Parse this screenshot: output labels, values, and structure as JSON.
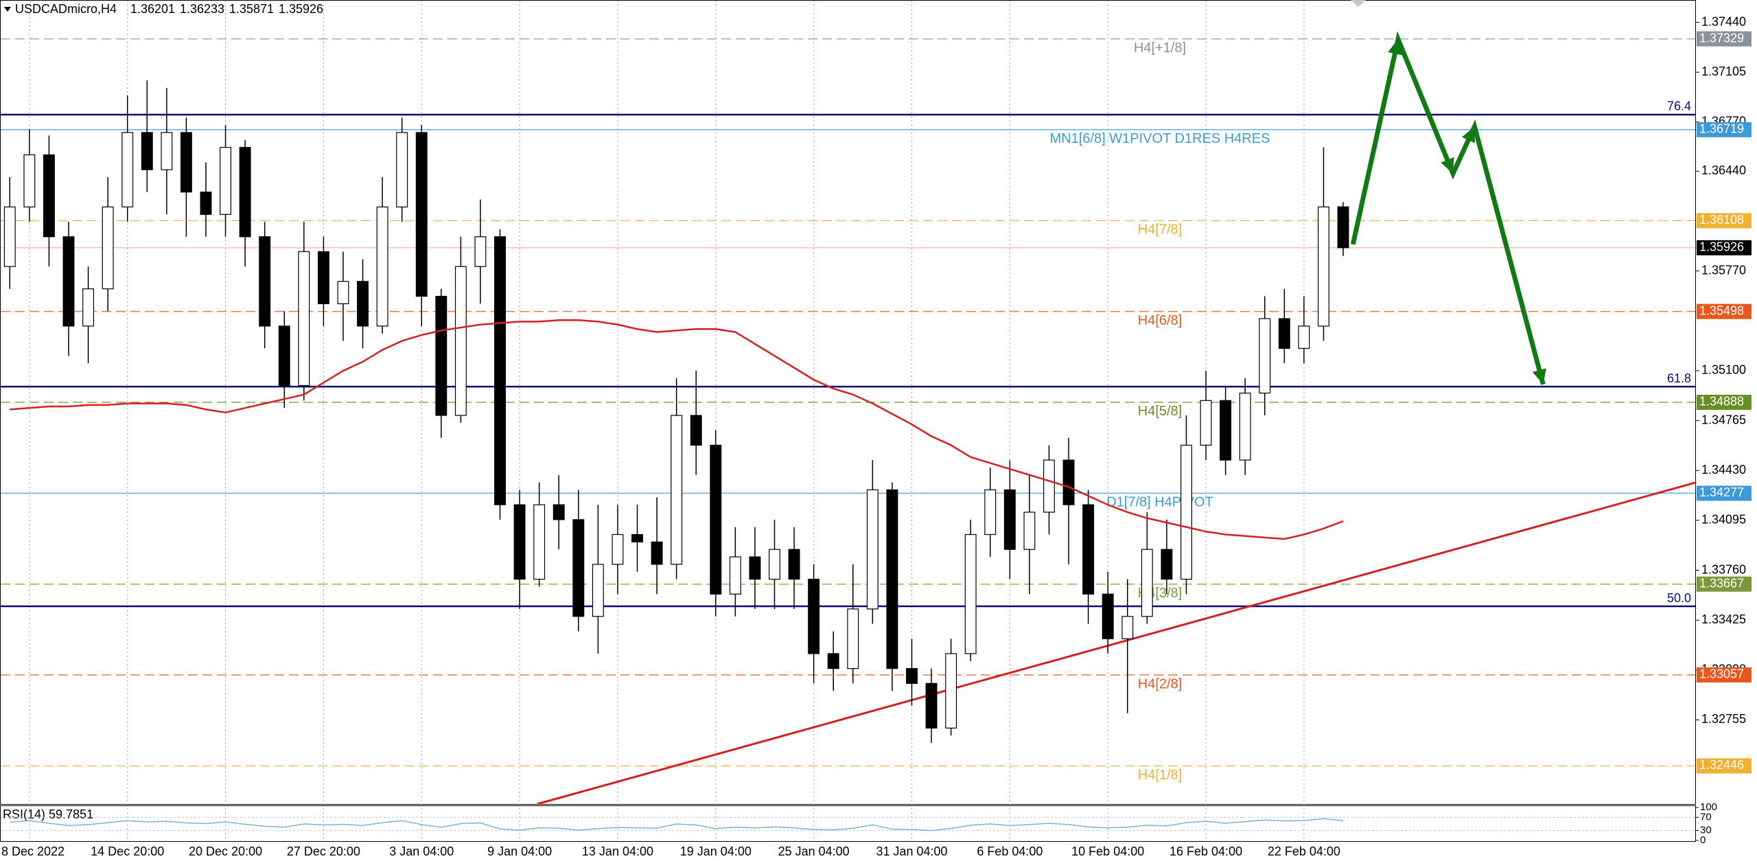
{
  "chart_data": {
    "type": "candlestick",
    "header": {
      "symbol": "USDCADmicro,H4",
      "ohlc": [
        1.36201,
        1.36233,
        1.35871,
        1.35926
      ]
    },
    "categories": [
      null,
      "8 Dec 2022",
      null,
      null,
      null,
      null,
      "14 Dec 20:00",
      null,
      null,
      null,
      null,
      "20 Dec 20:00",
      null,
      null,
      null,
      null,
      "27 Dec 20:00",
      null,
      null,
      null,
      null,
      "3 Jan 04:00",
      null,
      null,
      null,
      null,
      "9 Jan 04:00",
      null,
      null,
      null,
      null,
      "13 Jan 04:00",
      null,
      null,
      null,
      null,
      "19 Jan 04:00",
      null,
      null,
      null,
      null,
      "25 Jan 04:00",
      null,
      null,
      null,
      null,
      "31 Jan 04:00",
      null,
      null,
      null,
      null,
      "6 Feb 04:00",
      null,
      null,
      null,
      null,
      "10 Feb 04:00",
      null,
      null,
      null,
      null,
      "16 Feb 04:00",
      null,
      null,
      null,
      null,
      "22 Feb 04:00",
      null,
      null
    ],
    "candles": {
      "open": [
        1.358,
        1.362,
        1.3655,
        1.36,
        1.354,
        1.3565,
        1.362,
        1.367,
        1.3645,
        1.367,
        1.363,
        1.3615,
        1.366,
        1.36,
        1.354,
        1.35,
        1.359,
        1.3555,
        1.357,
        1.354,
        1.362,
        1.367,
        1.356,
        1.348,
        1.358,
        1.36,
        1.342,
        1.337,
        1.342,
        1.341,
        1.3345,
        1.338,
        1.34,
        1.3395,
        1.338,
        1.348,
        1.346,
        1.336,
        1.3385,
        1.337,
        1.339,
        1.337,
        1.332,
        1.331,
        1.335,
        1.343,
        1.331,
        1.33,
        1.327,
        1.332,
        1.34,
        1.343,
        1.339,
        1.3415,
        1.345,
        1.342,
        1.336,
        1.333,
        1.3345,
        1.339,
        1.337,
        1.346,
        1.349,
        1.345,
        1.3495,
        1.3545,
        1.3525,
        1.354,
        1.36201
      ],
      "high": [
        1.364,
        1.3672,
        1.3668,
        1.361,
        1.358,
        1.364,
        1.3695,
        1.3705,
        1.37,
        1.368,
        1.365,
        1.3675,
        1.3665,
        1.361,
        1.355,
        1.361,
        1.36,
        1.359,
        1.3585,
        1.364,
        1.368,
        1.3675,
        1.3565,
        1.36,
        1.3625,
        1.3605,
        1.343,
        1.3435,
        1.344,
        1.343,
        1.342,
        1.342,
        1.342,
        1.3425,
        1.3505,
        1.351,
        1.347,
        1.3405,
        1.3405,
        1.341,
        1.3405,
        1.338,
        1.3335,
        1.338,
        1.345,
        1.3435,
        1.333,
        1.331,
        1.333,
        1.341,
        1.3445,
        1.345,
        1.344,
        1.346,
        1.3465,
        1.343,
        1.3375,
        1.337,
        1.3415,
        1.341,
        1.348,
        1.351,
        1.35,
        1.3505,
        1.356,
        1.3565,
        1.356,
        1.366,
        1.36233
      ],
      "low": [
        1.3565,
        1.361,
        1.358,
        1.352,
        1.3515,
        1.355,
        1.361,
        1.363,
        1.3615,
        1.36,
        1.36,
        1.36,
        1.358,
        1.3525,
        1.3485,
        1.349,
        1.354,
        1.353,
        1.3525,
        1.3535,
        1.361,
        1.354,
        1.3465,
        1.3475,
        1.3555,
        1.341,
        1.335,
        1.3365,
        1.339,
        1.3335,
        1.332,
        1.336,
        1.3375,
        1.336,
        1.337,
        1.344,
        1.3345,
        1.3345,
        1.335,
        1.335,
        1.335,
        1.33,
        1.3295,
        1.33,
        1.334,
        1.3295,
        1.3285,
        1.326,
        1.3265,
        1.3315,
        1.3385,
        1.337,
        1.336,
        1.34,
        1.338,
        1.334,
        1.332,
        1.328,
        1.334,
        1.336,
        1.336,
        1.345,
        1.344,
        1.344,
        1.348,
        1.3515,
        1.3515,
        1.353,
        1.35871
      ],
      "close": [
        1.362,
        1.3655,
        1.36,
        1.354,
        1.3565,
        1.362,
        1.367,
        1.3645,
        1.367,
        1.363,
        1.3615,
        1.366,
        1.36,
        1.354,
        1.35,
        1.359,
        1.3555,
        1.357,
        1.354,
        1.362,
        1.367,
        1.356,
        1.348,
        1.358,
        1.36,
        1.342,
        1.337,
        1.342,
        1.341,
        1.3345,
        1.338,
        1.34,
        1.3395,
        1.338,
        1.348,
        1.346,
        1.336,
        1.3385,
        1.337,
        1.339,
        1.337,
        1.332,
        1.331,
        1.335,
        1.343,
        1.331,
        1.33,
        1.327,
        1.332,
        1.34,
        1.343,
        1.339,
        1.3415,
        1.345,
        1.342,
        1.336,
        1.333,
        1.3345,
        1.339,
        1.337,
        1.346,
        1.349,
        1.345,
        1.3495,
        1.3545,
        1.3525,
        1.354,
        1.362,
        1.35926
      ]
    },
    "up_color": "#ffffff",
    "down_color": "#000000",
    "ma": {
      "color": "#d42020",
      "values": [
        1.3484,
        1.3485,
        1.3486,
        1.3486,
        1.3487,
        1.3487,
        1.3488,
        1.3488,
        1.3488,
        1.3487,
        1.3484,
        1.3482,
        1.3485,
        1.3488,
        1.3491,
        1.3494,
        1.3502,
        1.351,
        1.3516,
        1.3524,
        1.353,
        1.3534,
        1.3537,
        1.3539,
        1.3541,
        1.3542,
        1.3543,
        1.3543,
        1.3544,
        1.3544,
        1.3543,
        1.3541,
        1.3538,
        1.3536,
        1.3537,
        1.3538,
        1.3538,
        1.3536,
        1.3528,
        1.352,
        1.3512,
        1.3504,
        1.3498,
        1.3494,
        1.3488,
        1.3481,
        1.3474,
        1.3466,
        1.346,
        1.3452,
        1.3448,
        1.3444,
        1.344,
        1.3436,
        1.3432,
        1.3426,
        1.342,
        1.3415,
        1.3411,
        1.3408,
        1.3405,
        1.3402,
        1.34,
        1.3399,
        1.3398,
        1.3397,
        1.34,
        1.3404,
        1.3409
      ]
    },
    "trendline": {
      "color": "#d42020",
      "x": [
        26.9,
        86
      ],
      "y": [
        1.3219,
        1.3435
      ]
    },
    "forecast": {
      "color": "#127a12",
      "x": [
        68.5,
        70.8,
        73.6,
        74.7,
        78.2
      ],
      "y": [
        1.35949,
        1.37327,
        1.36424,
        1.3674,
        1.35008
      ]
    },
    "ylim": [
      1.3219,
      1.3759
    ],
    "yticks": [
      {
        "value": 1.3744,
        "label": "1.37440"
      },
      1.37105,
      {
        "value": 1.3677,
        "label": "1.36770"
      },
      {
        "value": 1.3644,
        "label": "1.36440"
      },
      {
        "value": 1.3577,
        "label": "1.35770"
      },
      {
        "value": 1.351,
        "label": "1.35100"
      },
      1.34765,
      {
        "value": 1.3443,
        "label": "1.34430"
      },
      1.34095,
      {
        "value": 1.3376,
        "label": "1.33760"
      },
      1.33425,
      {
        "value": 1.3309,
        "label": "1.33090"
      },
      1.32755
    ],
    "levels": [
      {
        "price": 1.37329,
        "text": "H4[+1/8]",
        "color": "#8a939c",
        "style": "dashed"
      },
      {
        "price": 1.36719,
        "text": "MN1[6/8] W1PIVOT D1RES H4RES",
        "color": "#3d9ad9",
        "style": "solid"
      },
      {
        "price": 1.36108,
        "text": "H4[7/8]",
        "color": "#f0b030",
        "style": "dashed"
      },
      {
        "price": 1.35498,
        "text": "H4[6/8]",
        "color": "#e8571e",
        "style": "dashed"
      },
      {
        "price": 1.34888,
        "text": "H4[5/8]",
        "color": "#6b8e23",
        "style": "dashed"
      },
      {
        "price": 1.34277,
        "text": "D1[7/8] H4PIVOT",
        "color": "#3d9ad9",
        "style": "solid"
      },
      {
        "price": 1.33667,
        "text": "H4[3/8]",
        "color": "#7a9a3a",
        "style": "dashed"
      },
      {
        "price": 1.33057,
        "text": "H4[2/8]",
        "color": "#e8571e",
        "style": "dashed"
      },
      {
        "price": 1.32446,
        "text": "H4[1/8]",
        "color": "#f0b030",
        "style": "dashed"
      }
    ],
    "current_price": {
      "price": 1.35926,
      "color": "#000000"
    },
    "fib": {
      "color": "#0a0a78",
      "levels": [
        {
          "name": 76.4,
          "price": 1.3682
        },
        {
          "name": 61.8,
          "price": 1.34993
        },
        {
          "name": "50.0",
          "price": 1.33518
        }
      ]
    },
    "rsi": {
      "label": "RSI(14) 59.7851",
      "color": "#7fb0d8",
      "ylim": [
        0,
        100
      ],
      "yticks": [
        100,
        70,
        30,
        0
      ],
      "values": [
        55,
        60,
        52,
        45,
        48,
        54,
        60,
        56,
        58,
        53,
        51,
        56,
        49,
        43,
        40,
        50,
        47,
        49,
        45,
        54,
        60,
        48,
        40,
        51,
        53,
        35,
        31,
        38,
        37,
        31,
        36,
        39,
        38,
        37,
        50,
        47,
        36,
        40,
        38,
        41,
        38,
        33,
        32,
        37,
        47,
        34,
        33,
        30,
        36,
        46,
        50,
        45,
        48,
        52,
        48,
        41,
        38,
        40,
        46,
        44,
        54,
        58,
        52,
        57,
        62,
        59,
        60,
        66,
        59.7851
      ]
    }
  }
}
